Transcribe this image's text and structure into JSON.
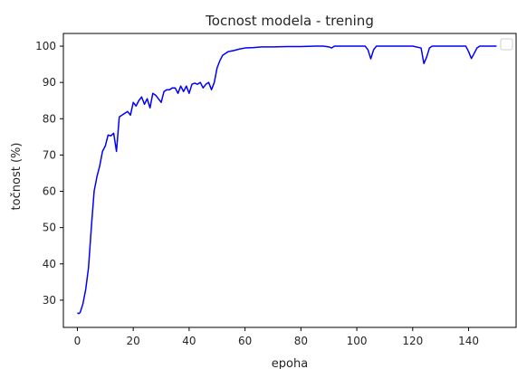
{
  "chart_data": {
    "type": "line",
    "title": "Tocnost modela - trening",
    "xlabel": "epoha",
    "ylabel": "točnost (%)",
    "xlim": [
      -5,
      157
    ],
    "ylim": [
      22.5,
      103.5
    ],
    "xticks": [
      0,
      20,
      40,
      60,
      80,
      100,
      120,
      140
    ],
    "yticks": [
      30,
      40,
      50,
      60,
      70,
      80,
      90,
      100
    ],
    "grid": false,
    "legend": "top-right",
    "series": [
      {
        "color": "#0000ff",
        "points": [
          [
            0,
            26.5
          ],
          [
            0.5,
            26.3
          ],
          [
            1,
            26.6
          ],
          [
            2,
            29
          ],
          [
            3,
            33
          ],
          [
            4,
            39
          ],
          [
            5,
            50
          ],
          [
            6,
            60
          ],
          [
            7,
            64
          ],
          [
            8,
            67
          ],
          [
            9,
            71
          ],
          [
            10,
            72.5
          ],
          [
            11,
            75.5
          ],
          [
            12,
            75.3
          ],
          [
            13,
            76
          ],
          [
            14,
            71
          ],
          [
            15,
            80.5
          ],
          [
            16,
            81
          ],
          [
            17,
            81.5
          ],
          [
            18,
            82
          ],
          [
            19,
            81
          ],
          [
            20,
            84.5
          ],
          [
            21,
            83.5
          ],
          [
            22,
            85
          ],
          [
            23,
            86
          ],
          [
            24,
            84
          ],
          [
            25,
            85.5
          ],
          [
            26,
            83
          ],
          [
            27,
            87
          ],
          [
            28,
            86.5
          ],
          [
            29,
            85.5
          ],
          [
            30,
            84.5
          ],
          [
            31,
            87.5
          ],
          [
            32,
            88
          ],
          [
            33,
            88
          ],
          [
            34,
            88.5
          ],
          [
            35,
            88.5
          ],
          [
            36,
            87
          ],
          [
            37,
            89
          ],
          [
            38,
            87.5
          ],
          [
            39,
            89
          ],
          [
            40,
            87
          ],
          [
            41,
            89.5
          ],
          [
            42,
            89.8
          ],
          [
            43,
            89.5
          ],
          [
            44,
            90
          ],
          [
            45,
            88.5
          ],
          [
            46,
            89.5
          ],
          [
            47,
            90
          ],
          [
            48,
            88
          ],
          [
            49,
            90
          ],
          [
            50,
            94
          ],
          [
            51,
            96
          ],
          [
            52,
            97.5
          ],
          [
            53,
            98
          ],
          [
            54,
            98.5
          ],
          [
            56,
            98.8
          ],
          [
            58,
            99.2
          ],
          [
            60,
            99.5
          ],
          [
            63,
            99.6
          ],
          [
            66,
            99.8
          ],
          [
            70,
            99.8
          ],
          [
            75,
            99.9
          ],
          [
            80,
            99.9
          ],
          [
            85,
            100
          ],
          [
            88,
            100
          ],
          [
            90,
            99.8
          ],
          [
            91,
            99.5
          ],
          [
            92,
            100
          ],
          [
            96,
            100
          ],
          [
            100,
            100
          ],
          [
            103,
            100
          ],
          [
            104,
            99
          ],
          [
            105,
            96.5
          ],
          [
            106,
            99
          ],
          [
            107,
            100
          ],
          [
            110,
            100
          ],
          [
            115,
            100
          ],
          [
            120,
            100
          ],
          [
            123,
            99.5
          ],
          [
            124,
            95.2
          ],
          [
            125,
            97
          ],
          [
            126,
            99.5
          ],
          [
            127,
            100
          ],
          [
            130,
            100
          ],
          [
            135,
            100
          ],
          [
            139,
            100
          ],
          [
            140,
            98.5
          ],
          [
            141,
            96.6
          ],
          [
            142,
            98
          ],
          [
            143,
            99.5
          ],
          [
            144,
            100
          ],
          [
            146,
            100
          ],
          [
            148,
            100
          ],
          [
            150,
            100
          ]
        ]
      }
    ]
  }
}
